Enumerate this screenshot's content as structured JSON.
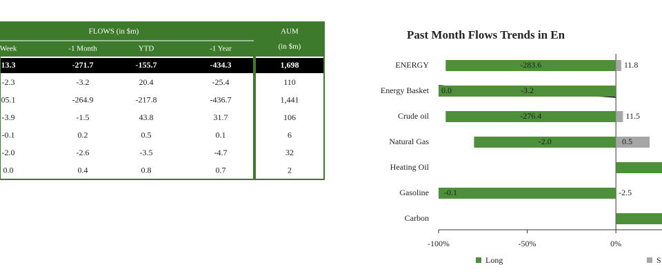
{
  "table": {
    "header": {
      "group": "FLOWS (in $m)",
      "columns": [
        "Week",
        "-1 Month",
        "YTD",
        "-1 Year"
      ],
      "aum": [
        "AUM",
        "(in $m)"
      ]
    },
    "rows": [
      [
        "13.3",
        "-271.7",
        "-155.7",
        "-434.3",
        "1,698"
      ],
      [
        "-2.3",
        "-3.2",
        "20.4",
        "-25.4",
        "110"
      ],
      [
        "05.1",
        "-264.9",
        "-217.8",
        "-436.7",
        "1,441"
      ],
      [
        "-3.9",
        "-1.5",
        "43.8",
        "31.7",
        "106"
      ],
      [
        "-0.1",
        "0.2",
        "0.5",
        "0.1",
        "6"
      ],
      [
        "-2.0",
        "-2.6",
        "-3.5",
        "-4.7",
        "32"
      ],
      [
        "0.0",
        "0.4",
        "0.8",
        "0.7",
        "2"
      ]
    ]
  },
  "chart_data": {
    "type": "hbar",
    "title": "Past Month Flows Trends in En",
    "categories": [
      "ENERGY",
      "Energy Basket",
      "Crude oil",
      "Natural Gas",
      "Heating Oil",
      "Gasoline",
      "Carbon"
    ],
    "series": [
      {
        "name": "Long",
        "color": "#4e8f3a",
        "values": [
          -96,
          -100,
          -96,
          -80,
          30,
          -100,
          30
        ],
        "flow_labels": [
          "-283.6",
          "-3.2",
          "-276.4",
          "-2.0",
          null,
          "-0.1",
          null
        ]
      },
      {
        "name": "S",
        "color": "#a6a6a6",
        "values": [
          3,
          0,
          4,
          19,
          0,
          0,
          0
        ],
        "flow_labels": [
          "11.8",
          "0.0",
          "11.5",
          "0.5",
          null,
          "-2.5",
          null
        ]
      }
    ],
    "xlim": [
      -100,
      26
    ],
    "xticks": [
      {
        "value": -100,
        "label": "-100%"
      },
      {
        "value": -50,
        "label": "-50%"
      },
      {
        "value": 0,
        "label": "0%"
      }
    ]
  }
}
